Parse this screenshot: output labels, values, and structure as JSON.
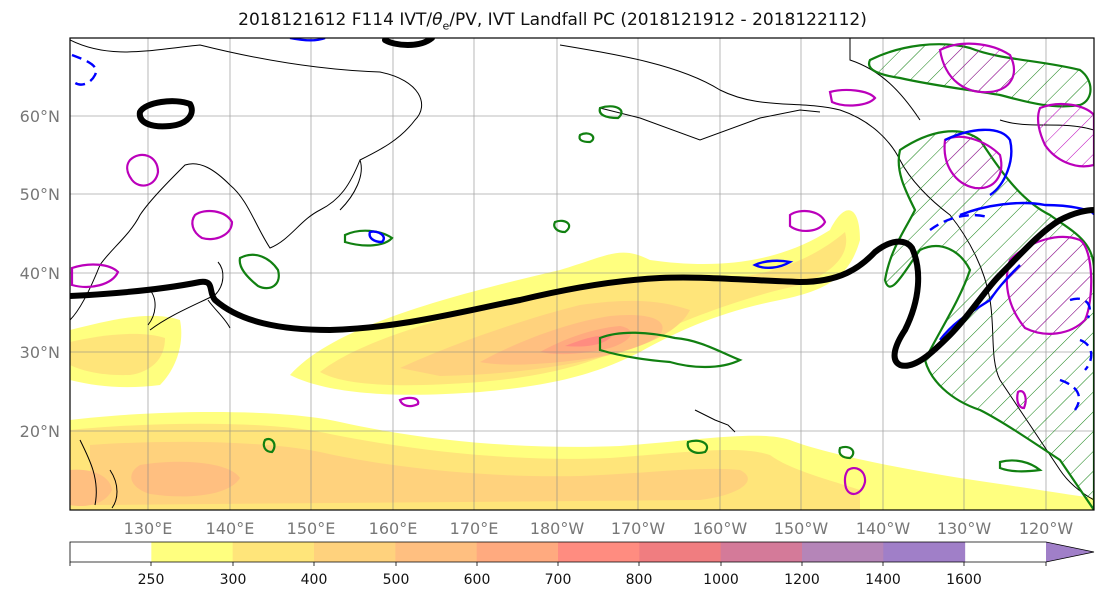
{
  "title": {
    "prefix": "2018121612 F114 IVT/",
    "theta": "θ",
    "subscript": "e",
    "suffix": "/PV, IVT Landfall PC (2018121912 - 2018122112)"
  },
  "map": {
    "lat_labels": [
      "60°N",
      "50°N",
      "40°N",
      "30°N",
      "20°N"
    ],
    "lon_labels": [
      "130°E",
      "140°E",
      "150°E",
      "160°E",
      "170°E",
      "180°W",
      "170°W",
      "160°W",
      "150°W",
      "140°W",
      "130°W",
      "120°W"
    ],
    "fill_colors": [
      "#ffffff",
      "#ffff7f",
      "#ffe57a",
      "#ffd27d",
      "#ffbf80",
      "#ffaa7f",
      "#ff8c80",
      "#f07d80",
      "#d47a99",
      "#b585b8",
      "#a07fc8"
    ],
    "contour_colors": {
      "landfall_pc": "#000000",
      "theta_e": "#118011",
      "pv": "#bb00bb",
      "ivt_pos": "#0000ff"
    }
  },
  "colorbar": {
    "tick_labels": [
      "250",
      "300",
      "400",
      "500",
      "600",
      "700",
      "800",
      "1000",
      "1200",
      "1400",
      "1600"
    ]
  }
}
